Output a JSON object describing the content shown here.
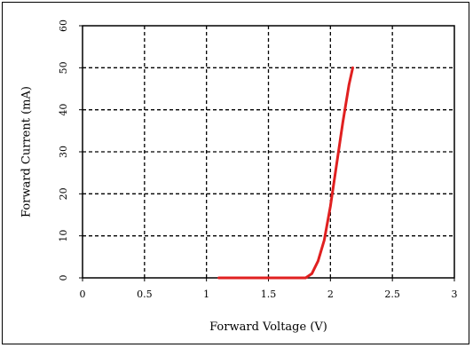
{
  "chart_data": {
    "type": "line",
    "title": "",
    "xlabel": "Forward Voltage (V)",
    "ylabel": "Forward Current (mA)",
    "xlim": [
      0,
      3
    ],
    "ylim": [
      0,
      60
    ],
    "x_ticks": [
      0,
      0.5,
      1,
      1.5,
      2,
      2.5,
      3
    ],
    "x_tick_labels": [
      "0",
      "0.5",
      "1",
      "1.5",
      "2",
      "2.5",
      "3"
    ],
    "y_ticks": [
      0,
      10,
      20,
      30,
      40,
      50,
      60
    ],
    "y_tick_labels": [
      "0",
      "10",
      "20",
      "30",
      "40",
      "50",
      "60"
    ],
    "grid": true,
    "legend": "none",
    "series": [
      {
        "color": "#e02020",
        "x": [
          1.1,
          1.5,
          1.8,
          1.85,
          1.9,
          1.95,
          2.0,
          2.05,
          2.1,
          2.15,
          2.18
        ],
        "y": [
          0,
          0,
          0,
          1,
          4,
          9,
          17,
          27,
          37,
          46,
          50
        ]
      }
    ]
  }
}
